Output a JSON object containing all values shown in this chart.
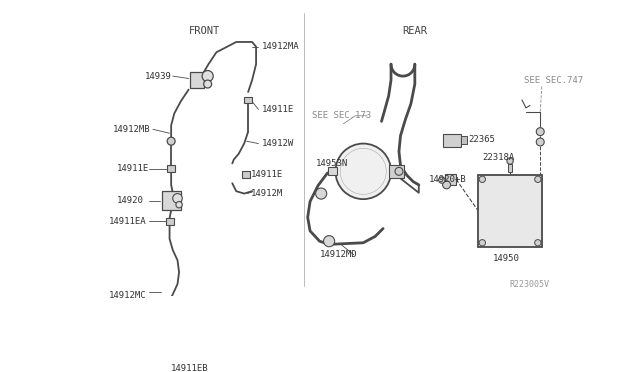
{
  "bg_color": "#ffffff",
  "line_color": "#4a4a4a",
  "label_color": "#333333",
  "gray_label_color": "#888888",
  "front_label": "FRONT",
  "rear_label": "REAR",
  "watermark": "R223005V",
  "fs_header": 7.5,
  "fs_part": 6.5,
  "fs_water": 6.0
}
